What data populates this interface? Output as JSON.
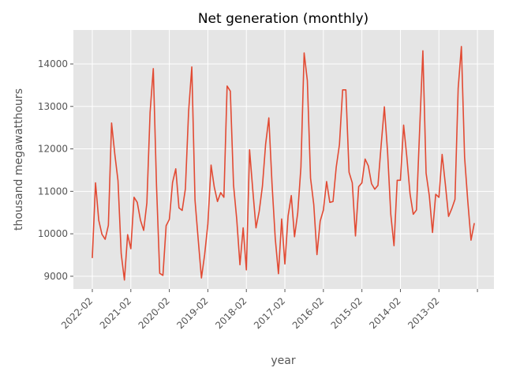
{
  "chart_data": {
    "type": "line",
    "title": "Net generation (monthly)",
    "xlabel": "year",
    "ylabel": "thousand megawatthours",
    "x_order": "descending",
    "x_start": "2022-02",
    "x_end": "2012-02",
    "ylim": [
      8700,
      14800
    ],
    "y_ticks": [
      9000,
      10000,
      11000,
      12000,
      13000,
      14000
    ],
    "x_ticks": [
      "2022-02",
      "2021-02",
      "2020-02",
      "2019-02",
      "2018-02",
      "2017-02",
      "2016-02",
      "2015-02",
      "2014-02",
      "2013-02",
      ""
    ],
    "grid": true,
    "style": "ggplot",
    "line_color": "#E24A33",
    "series": [
      {
        "values": [
          9440,
          11200,
          10320,
          9990,
          9870,
          10200,
          12610,
          11880,
          11250,
          9530,
          8910,
          9980,
          9650,
          10860,
          10740,
          10320,
          10080,
          10730,
          12860,
          13890,
          11140,
          9070,
          9020,
          10190,
          10340,
          11210,
          11530,
          10610,
          10550,
          11060,
          12880,
          13930,
          10790,
          9860,
          8960,
          9510,
          10230,
          11620,
          11100,
          10760,
          10970,
          10860,
          13480,
          13360,
          11150,
          10340,
          9270,
          10140,
          9150,
          11980,
          11030,
          10140,
          10530,
          11120,
          12110,
          12730,
          11170,
          9890,
          9060,
          10350,
          9290,
          10420,
          10900,
          9930,
          10490,
          11570,
          14260,
          13610,
          11310,
          10690,
          9510,
          10300,
          10560,
          11230,
          10740,
          10760,
          11570,
          12100,
          13390,
          13390,
          11450,
          11200,
          9950,
          11110,
          11200,
          11760,
          11600,
          11180,
          11050,
          11140,
          12090,
          12990,
          11930,
          10460,
          9720,
          11260,
          11260,
          12560,
          11810,
          10940,
          10460,
          10560,
          12470,
          14310,
          11430,
          10900,
          10030,
          10930,
          10860,
          11870,
          11170,
          10410,
          10590,
          10810,
          13430,
          14410,
          11800,
          10760,
          9850,
          10240
        ]
      }
    ]
  }
}
